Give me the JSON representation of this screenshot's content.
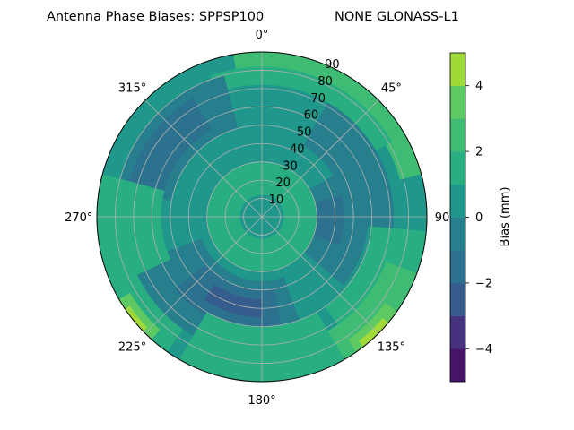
{
  "chart_data": {
    "type": "polar-contour",
    "title": "Antenna Phase Biases: SPPSP100",
    "subtitle": "NONE GLONASS-L1",
    "colorbar": {
      "label": "Bias (mm)",
      "levels": [
        -5,
        -4,
        -3,
        -2,
        -1,
        0,
        1,
        2,
        3,
        4,
        5
      ],
      "tick_labels": [
        "4",
        "2",
        "0",
        "−2",
        "−4"
      ],
      "tick_values": [
        4,
        2,
        0,
        -2,
        -4
      ],
      "colors": [
        "#481467",
        "#46327e",
        "#365c8d",
        "#2c728e",
        "#277f8e",
        "#1f988b",
        "#28ae80",
        "#3fbc73",
        "#5ec962",
        "#a0da39",
        "#e2e418"
      ]
    },
    "azimuth_labels": [
      "0°",
      "45°",
      "90°",
      "135°",
      "180°",
      "225°",
      "270°",
      "315°"
    ],
    "azimuth_values": [
      0,
      45,
      90,
      135,
      180,
      225,
      270,
      315
    ],
    "radial_labels": [
      "10",
      "20",
      "30",
      "40",
      "50",
      "60",
      "70",
      "80",
      "90"
    ],
    "radial_values": [
      10,
      20,
      30,
      40,
      50,
      60,
      70,
      80,
      90
    ],
    "rlim": [
      0,
      90
    ],
    "grid": true,
    "regions": [
      {
        "level": 0.5,
        "rmin": 0,
        "rmax": 90,
        "az": [
          0,
          360
        ]
      },
      {
        "level": 2.5,
        "rmin": 78,
        "rmax": 90,
        "az": [
          350,
          75
        ]
      },
      {
        "level": 1.5,
        "rmin": 72,
        "rmax": 82,
        "az": [
          340,
          60
        ]
      },
      {
        "level": -0.5,
        "rmin": 50,
        "rmax": 80,
        "az": [
          280,
          345
        ]
      },
      {
        "level": -1.5,
        "rmin": 55,
        "rmax": 75,
        "az": [
          285,
          330
        ]
      },
      {
        "level": -0.5,
        "rmin": 45,
        "rmax": 72,
        "az": [
          30,
          95
        ]
      },
      {
        "level": -0.5,
        "rmin": 22,
        "rmax": 58,
        "az": [
          60,
          130
        ]
      },
      {
        "level": -1.5,
        "rmin": 28,
        "rmax": 45,
        "az": [
          75,
          110
        ]
      },
      {
        "level": 1.5,
        "rmin": 5,
        "rmax": 30,
        "az": [
          0,
          360
        ]
      },
      {
        "level": 0.5,
        "rmin": 0,
        "rmax": 12,
        "az": [
          0,
          360
        ]
      },
      {
        "level": -0.5,
        "rmin": 35,
        "rmax": 75,
        "az": [
          160,
          250
        ]
      },
      {
        "level": -1.5,
        "rmin": 40,
        "rmax": 62,
        "az": [
          170,
          230
        ]
      },
      {
        "level": -2.5,
        "rmin": 45,
        "rmax": 55,
        "az": [
          180,
          215
        ]
      },
      {
        "level": 1.5,
        "rmin": 55,
        "rmax": 90,
        "az": [
          245,
          285
        ]
      },
      {
        "level": 1.5,
        "rmin": 60,
        "rmax": 90,
        "az": [
          95,
          145
        ]
      },
      {
        "level": 2.5,
        "rmin": 72,
        "rmax": 90,
        "az": [
          110,
          150
        ]
      },
      {
        "level": 3.5,
        "rmin": 82,
        "rmax": 90,
        "az": [
          125,
          145
        ]
      },
      {
        "level": 4.5,
        "rmin": 86,
        "rmax": 90,
        "az": [
          130,
          142
        ]
      },
      {
        "level": 1.5,
        "rmin": 75,
        "rmax": 90,
        "az": [
          215,
          250
        ]
      },
      {
        "level": 3.5,
        "rmin": 83,
        "rmax": 90,
        "az": [
          222,
          240
        ]
      },
      {
        "level": 4.5,
        "rmin": 87,
        "rmax": 90,
        "az": [
          226,
          236
        ]
      },
      {
        "level": 1.5,
        "rmin": 60,
        "rmax": 90,
        "az": [
          150,
          210
        ]
      }
    ]
  }
}
